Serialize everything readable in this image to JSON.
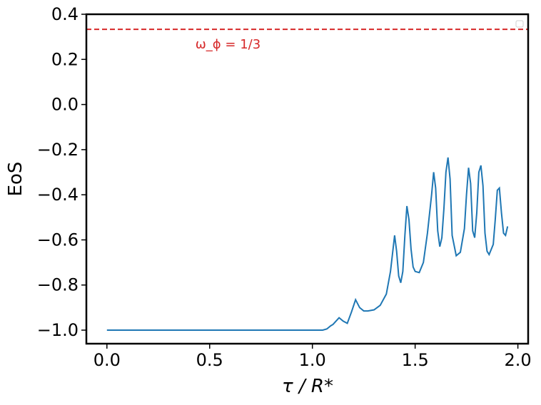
{
  "chart_data": {
    "type": "line",
    "xlabel": "τ / R*",
    "ylabel": "EoS",
    "xlim": [
      -0.1,
      2.05
    ],
    "ylim": [
      -1.06,
      0.4
    ],
    "x_ticks": [
      "0.0",
      "0.5",
      "1.0",
      "1.5",
      "2.0"
    ],
    "y_ticks": [
      "0.4",
      "0.2",
      "0.0",
      "−0.2",
      "−0.4",
      "−0.6",
      "−0.8",
      "−1.0"
    ],
    "grid": false,
    "reference_line": {
      "y": 0.3333,
      "color": "#d62728",
      "style": "dashed",
      "label": "ω_ϕ = 1/3"
    },
    "series": [
      {
        "color": "#1f77b4",
        "x": [
          0.0,
          0.5,
          1.0,
          1.05,
          1.07,
          1.09,
          1.1,
          1.12,
          1.13,
          1.15,
          1.17,
          1.19,
          1.21,
          1.23,
          1.25,
          1.27,
          1.3,
          1.33,
          1.36,
          1.38,
          1.39,
          1.4,
          1.41,
          1.42,
          1.43,
          1.44,
          1.45,
          1.46,
          1.47,
          1.48,
          1.49,
          1.5,
          1.52,
          1.54,
          1.56,
          1.58,
          1.59,
          1.6,
          1.61,
          1.62,
          1.63,
          1.64,
          1.65,
          1.66,
          1.67,
          1.68,
          1.7,
          1.72,
          1.74,
          1.75,
          1.76,
          1.77,
          1.78,
          1.79,
          1.8,
          1.81,
          1.82,
          1.83,
          1.84,
          1.85,
          1.86,
          1.88,
          1.89,
          1.9,
          1.91,
          1.92,
          1.93,
          1.94,
          1.95
        ],
        "y": [
          -1.0,
          -1.0,
          -1.0,
          -1.0,
          -0.995,
          -0.98,
          -0.975,
          -0.955,
          -0.945,
          -0.96,
          -0.97,
          -0.92,
          -0.865,
          -0.9,
          -0.915,
          -0.915,
          -0.91,
          -0.89,
          -0.84,
          -0.74,
          -0.66,
          -0.58,
          -0.65,
          -0.76,
          -0.79,
          -0.74,
          -0.58,
          -0.45,
          -0.51,
          -0.64,
          -0.72,
          -0.74,
          -0.745,
          -0.7,
          -0.57,
          -0.4,
          -0.3,
          -0.37,
          -0.56,
          -0.63,
          -0.59,
          -0.46,
          -0.3,
          -0.235,
          -0.33,
          -0.58,
          -0.67,
          -0.655,
          -0.55,
          -0.4,
          -0.28,
          -0.35,
          -0.56,
          -0.59,
          -0.48,
          -0.3,
          -0.27,
          -0.36,
          -0.57,
          -0.65,
          -0.665,
          -0.62,
          -0.51,
          -0.38,
          -0.37,
          -0.48,
          -0.57,
          -0.58,
          -0.54
        ]
      }
    ]
  }
}
